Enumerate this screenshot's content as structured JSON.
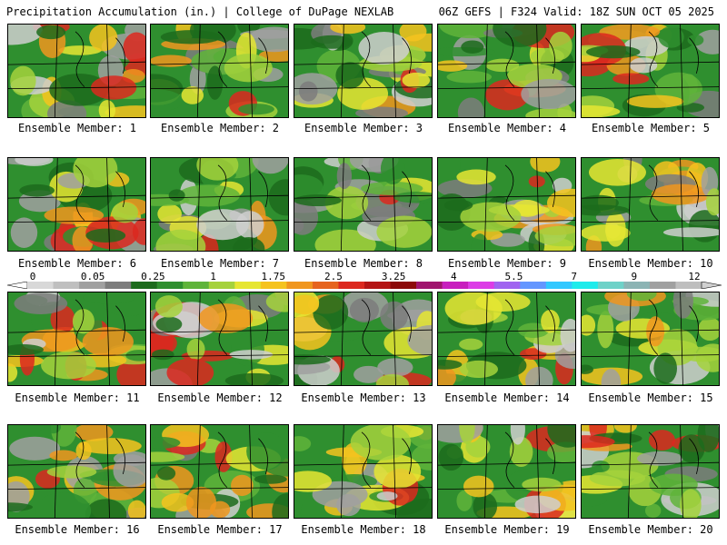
{
  "header": {
    "left": "Precipitation Accumulation (in.) | College of DuPage NEXLAB",
    "right": "06Z GEFS | F324 Valid: 18Z SUN OCT 05 2025"
  },
  "legend": {
    "ticks": [
      "0",
      "0.05",
      "0.25",
      "1",
      "1.75",
      "2.5",
      "3.25",
      "4",
      "5.5",
      "7",
      "9",
      "12"
    ],
    "colors": [
      "#d8d8d8",
      "#bfbfbf",
      "#a0a0a0",
      "#7d7d7d",
      "#1c6b1c",
      "#2f8f2f",
      "#5fb43a",
      "#a5d23c",
      "#e6e632",
      "#f5c31e",
      "#f0961e",
      "#e6641e",
      "#dc281e",
      "#b41414",
      "#8c0a0a",
      "#a0146e",
      "#c81ebe",
      "#dc3ce6",
      "#a064f0",
      "#6496ff",
      "#32c8ff",
      "#1eebeb",
      "#6ed2c8",
      "#8cb4b4",
      "#a0a0a0",
      "#bebebe"
    ]
  },
  "members": [
    {
      "label": "Ensemble Member: 1"
    },
    {
      "label": "Ensemble Member: 2"
    },
    {
      "label": "Ensemble Member: 3"
    },
    {
      "label": "Ensemble Member: 4"
    },
    {
      "label": "Ensemble Member: 5"
    },
    {
      "label": "Ensemble Member: 6"
    },
    {
      "label": "Ensemble Member: 7"
    },
    {
      "label": "Ensemble Member: 8"
    },
    {
      "label": "Ensemble Member: 9"
    },
    {
      "label": "Ensemble Member: 10"
    },
    {
      "label": "Ensemble Member: 11"
    },
    {
      "label": "Ensemble Member: 12"
    },
    {
      "label": "Ensemble Member: 13"
    },
    {
      "label": "Ensemble Member: 14"
    },
    {
      "label": "Ensemble Member: 15"
    },
    {
      "label": "Ensemble Member: 16"
    },
    {
      "label": "Ensemble Member: 17"
    },
    {
      "label": "Ensemble Member: 18"
    },
    {
      "label": "Ensemble Member: 19"
    },
    {
      "label": "Ensemble Member: 20"
    }
  ]
}
